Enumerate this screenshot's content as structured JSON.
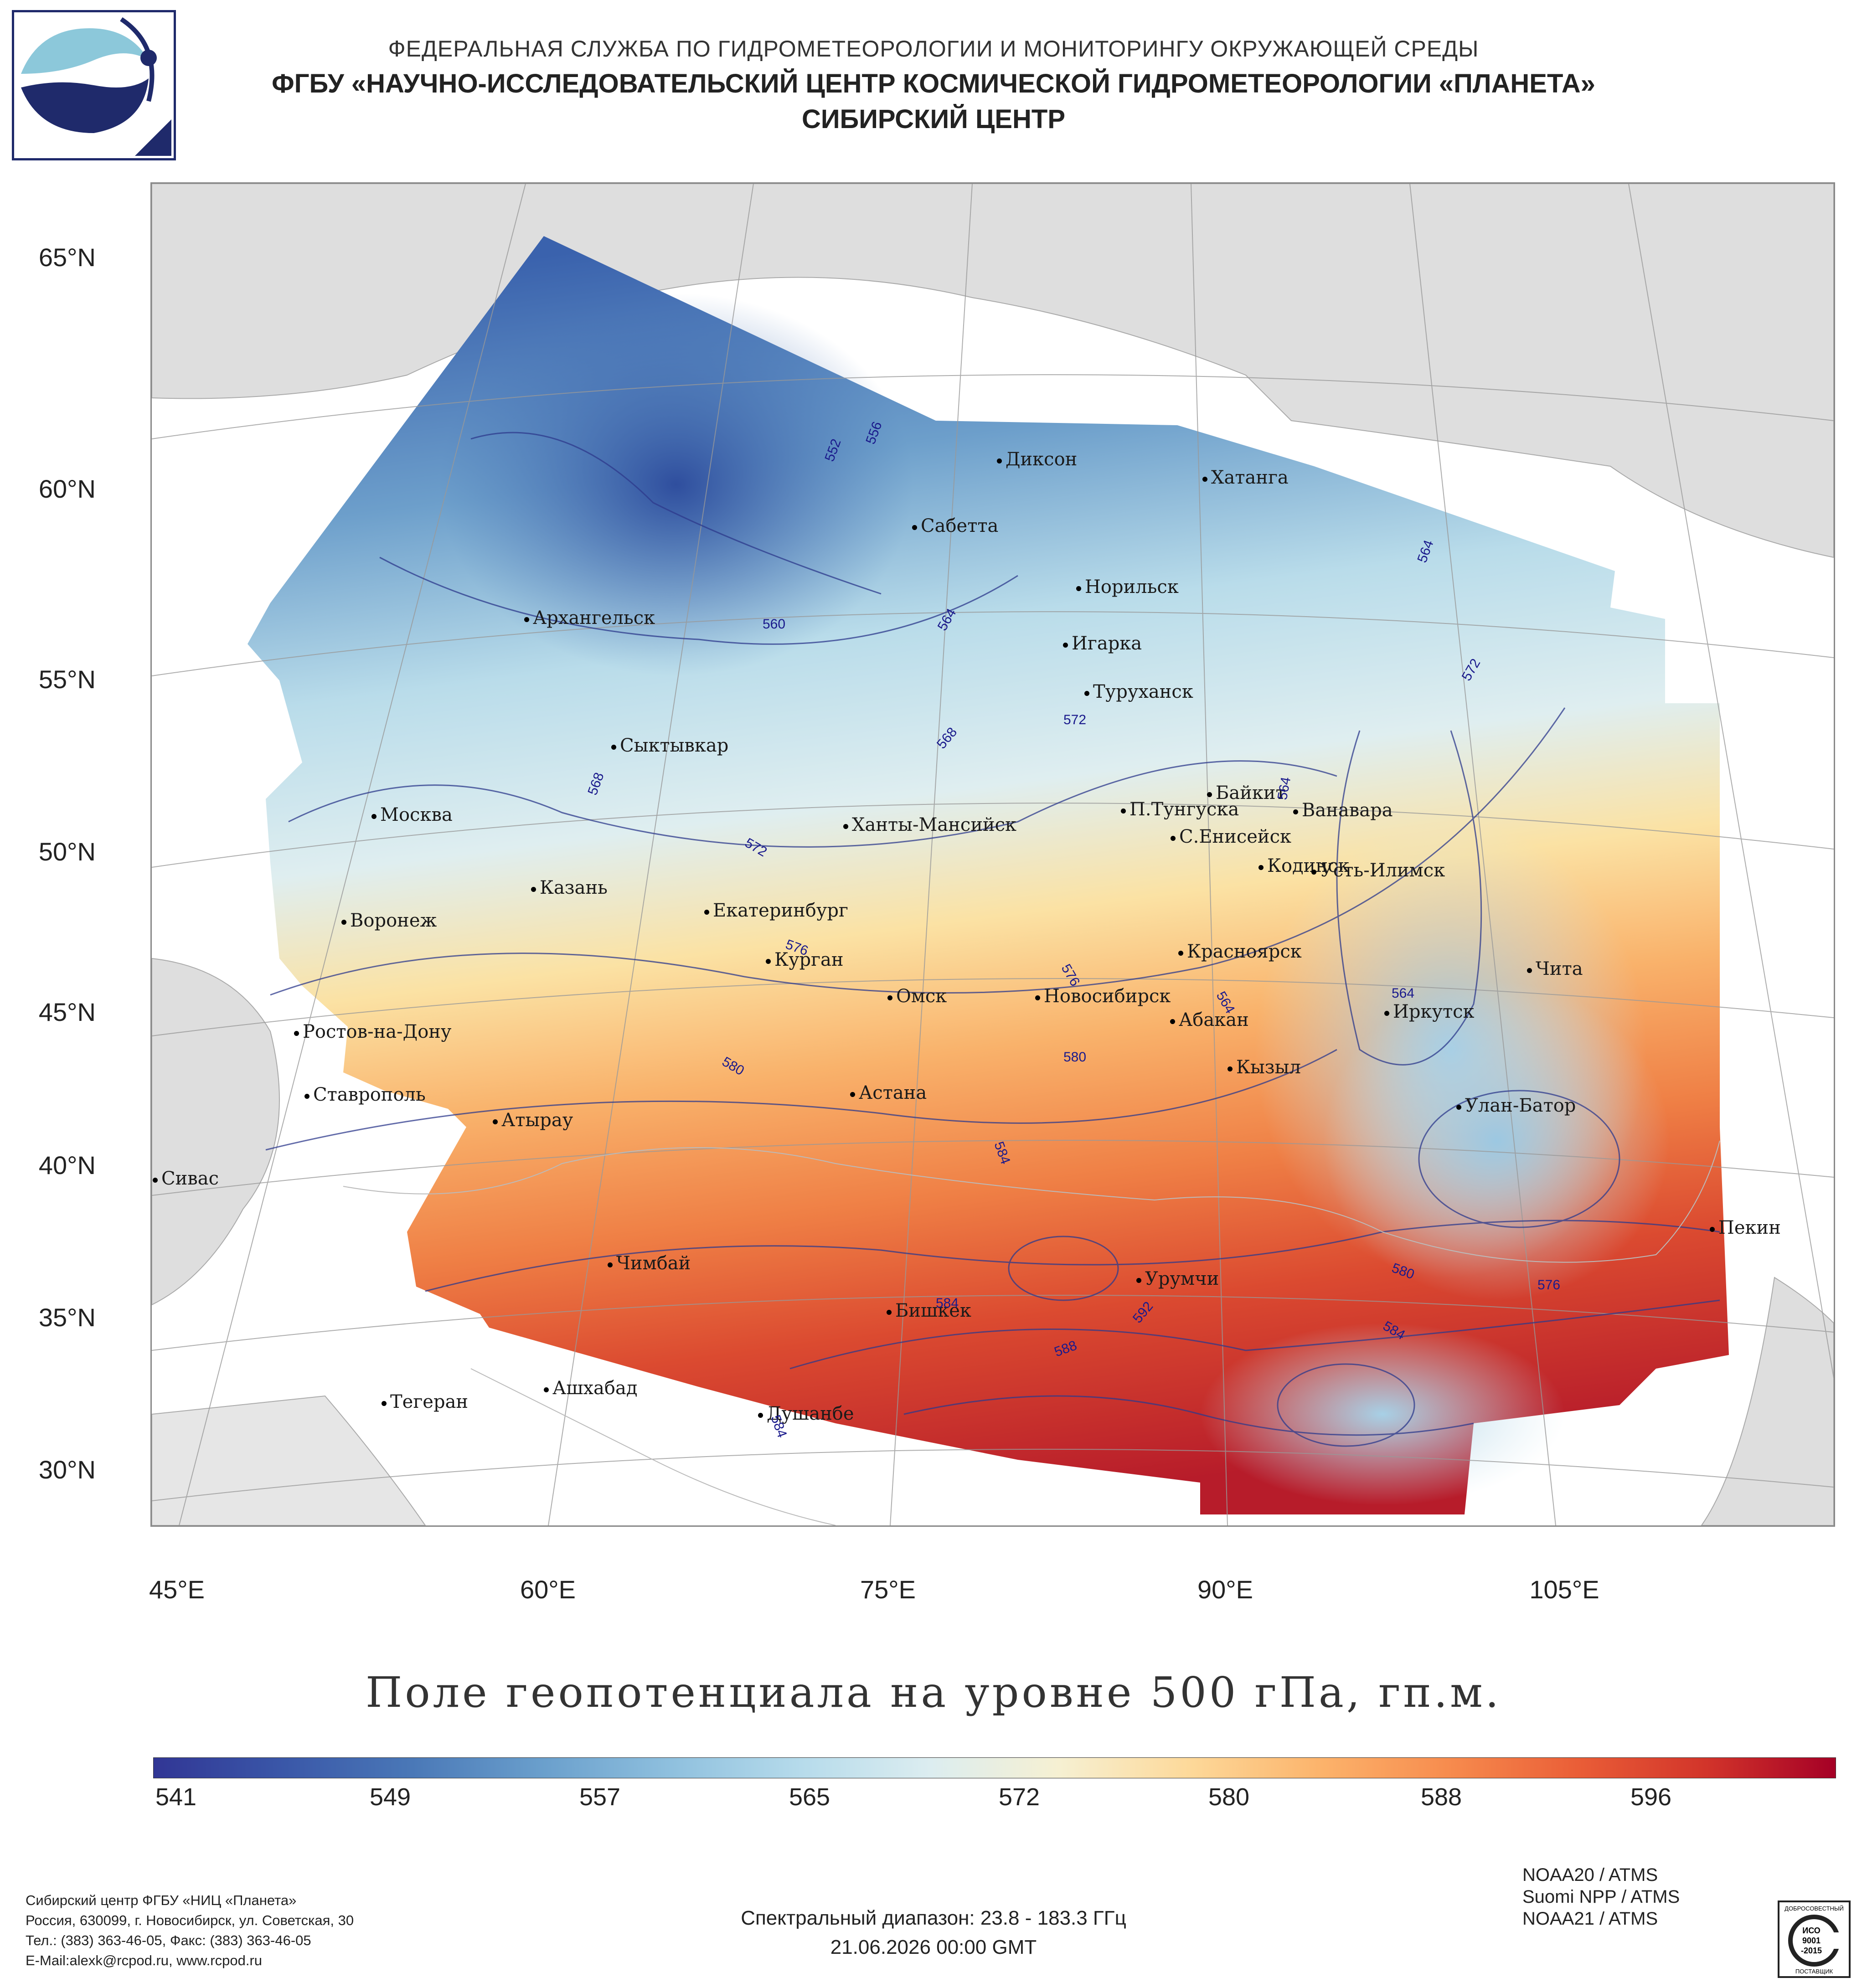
{
  "header": {
    "line1": "ФЕДЕРАЛЬНАЯ СЛУЖБА ПО ГИДРОМЕТЕОРОЛОГИИ И МОНИТОРИНГУ ОКРУЖАЮЩЕЙ СРЕДЫ",
    "line2": "ФГБУ «НАУЧНО-ИССЛЕДОВАТЕЛЬСКИЙ ЦЕНТР КОСМИЧЕСКОЙ ГИДРОМЕТЕОРОЛОГИИ «ПЛАНЕТА»",
    "line3": "СИБИРСКИЙ ЦЕНТР"
  },
  "map": {
    "lat_labels": [
      "65°N",
      "60°N",
      "55°N",
      "50°N",
      "45°N",
      "40°N",
      "35°N",
      "30°N"
    ],
    "lon_labels": [
      "45°E",
      "60°E",
      "75°E",
      "90°E",
      "105°E"
    ],
    "cities": [
      "Диксон",
      "Хатанга",
      "Сабетта",
      "Норильск",
      "Архангельск",
      "Игарка",
      "Туруханск",
      "Сыктывкар",
      "Байкит",
      "Москва",
      "П.Тунгуска",
      "Ванавара",
      "Ханты-Мансийск",
      "С.Енисейск",
      "Кодинск",
      "Усть-Илимск",
      "Казань",
      "Екатеринбург",
      "Воронеж",
      "Красноярск",
      "Курган",
      "Чита",
      "Омск",
      "Новосибирск",
      "Иркутск",
      "Ростов-на-Дону",
      "Абакан",
      "Кызыл",
      "Астана",
      "Ставрополь",
      "Улан-Батор",
      "Атырау",
      "Сивас",
      "Пекин",
      "Чимбай",
      "Урумчи",
      "Бишкек",
      "Тегеран",
      "Ашхабад",
      "Душанбе"
    ],
    "contour_labels": [
      "552",
      "556",
      "560",
      "564",
      "564",
      "568",
      "568",
      "572",
      "572",
      "572",
      "576",
      "576",
      "576",
      "580",
      "580",
      "580",
      "584",
      "584",
      "584",
      "584",
      "588",
      "592",
      "564",
      "564",
      "564"
    ]
  },
  "title": "Поле геопотенциала на уровне 500 гПа, гп.м.",
  "colorbar": {
    "labels": [
      "541",
      "549",
      "557",
      "565",
      "572",
      "580",
      "588",
      "596"
    ],
    "colors": [
      "#313695",
      "#3a57a8",
      "#4a78b7",
      "#6a9fcc",
      "#8fc0de",
      "#b6dbeb",
      "#dcedf0",
      "#f6f0d2",
      "#fdd99a",
      "#fcb46c",
      "#f78c4e",
      "#ea5e37",
      "#d2342a",
      "#a50026"
    ]
  },
  "footer": {
    "org": "Сибирский центр ФГБУ «НИЦ «Планета»",
    "address": "Россия, 630099, г. Новосибирск, ул. Советская, 30",
    "phone": "Тел.: (383) 363-46-05, Факс: (383) 363-46-05",
    "email": "E-Mail:alexk@rcpod.ru, www.rcpod.ru",
    "spectral": "Спектральный диапазон: 23.8 - 183.3 ГГц",
    "datetime": "21.06.2026 00:00 GMT",
    "satellites": [
      "NOAA20 / ATMS",
      "Suomi NPP / ATMS",
      "NOAA21 / ATMS"
    ],
    "iso_top": "ДОБРОСОВЕСТНЫЙ",
    "iso_mid1": "ИСО",
    "iso_mid2": "9001",
    "iso_mid3": "-2015",
    "iso_bottom": "ПОСТАВЩИК"
  }
}
